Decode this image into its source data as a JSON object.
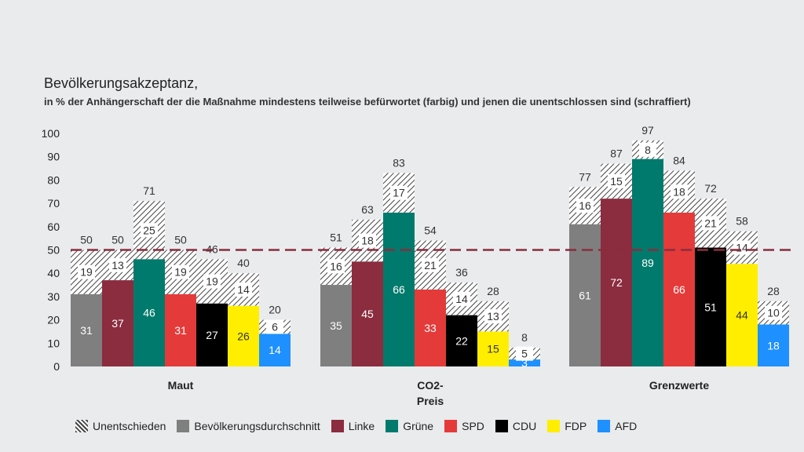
{
  "title": "Bevölkerungsakzeptanz,",
  "subtitle": "in % der Anhängerschaft der die Maßnahme mindestens teilweise befürwortet (farbig) und jenen die unentschlossen sind (schraffiert)",
  "chart_data": {
    "type": "bar",
    "stacked": true,
    "categories": [
      [
        "Maut"
      ],
      [
        "CO2-",
        "Preis"
      ],
      [
        "Grenzwerte"
      ]
    ],
    "series": [
      {
        "name": "Bevölkerungsdurchschnitt",
        "color": "#7f7f7f",
        "label_color": "#ffffff",
        "approve": [
          31,
          35,
          61
        ],
        "undecided": [
          19,
          16,
          16
        ],
        "total": [
          50,
          51,
          77
        ]
      },
      {
        "name": "Linke",
        "color": "#8b2c3f",
        "label_color": "#ffffff",
        "approve": [
          37,
          45,
          72
        ],
        "undecided": [
          13,
          18,
          15
        ],
        "total": [
          50,
          63,
          87
        ]
      },
      {
        "name": "Grüne",
        "color": "#007a6c",
        "label_color": "#ffffff",
        "approve": [
          46,
          66,
          89
        ],
        "undecided": [
          25,
          17,
          8
        ],
        "total": [
          71,
          83,
          97
        ]
      },
      {
        "name": "SPD",
        "color": "#e53a3a",
        "label_color": "#ffffff",
        "approve": [
          31,
          33,
          66
        ],
        "undecided": [
          19,
          21,
          18
        ],
        "total": [
          50,
          54,
          84
        ]
      },
      {
        "name": "CDU",
        "color": "#000000",
        "label_color": "#ffffff",
        "approve": [
          27,
          22,
          51
        ],
        "undecided": [
          19,
          14,
          21
        ],
        "total": [
          46,
          36,
          72
        ]
      },
      {
        "name": "FDP",
        "color": "#ffee00",
        "label_color": "#333333",
        "approve": [
          26,
          15,
          44
        ],
        "undecided": [
          14,
          13,
          14
        ],
        "total": [
          40,
          28,
          58
        ]
      },
      {
        "name": "AFD",
        "color": "#1e90ff",
        "label_color": "#ffffff",
        "approve": [
          14,
          3,
          18
        ],
        "undecided": [
          6,
          5,
          10
        ],
        "total": [
          20,
          8,
          28
        ]
      }
    ],
    "undecided_label": "Unentschieden",
    "ylim": [
      0,
      100
    ],
    "yticks": [
      0,
      10,
      20,
      30,
      40,
      50,
      60,
      70,
      80,
      90,
      100
    ],
    "reference_line": {
      "value": 50,
      "color": "#8b2c3f",
      "style": "dashed"
    },
    "legend_position": "bottom",
    "grid": false
  }
}
